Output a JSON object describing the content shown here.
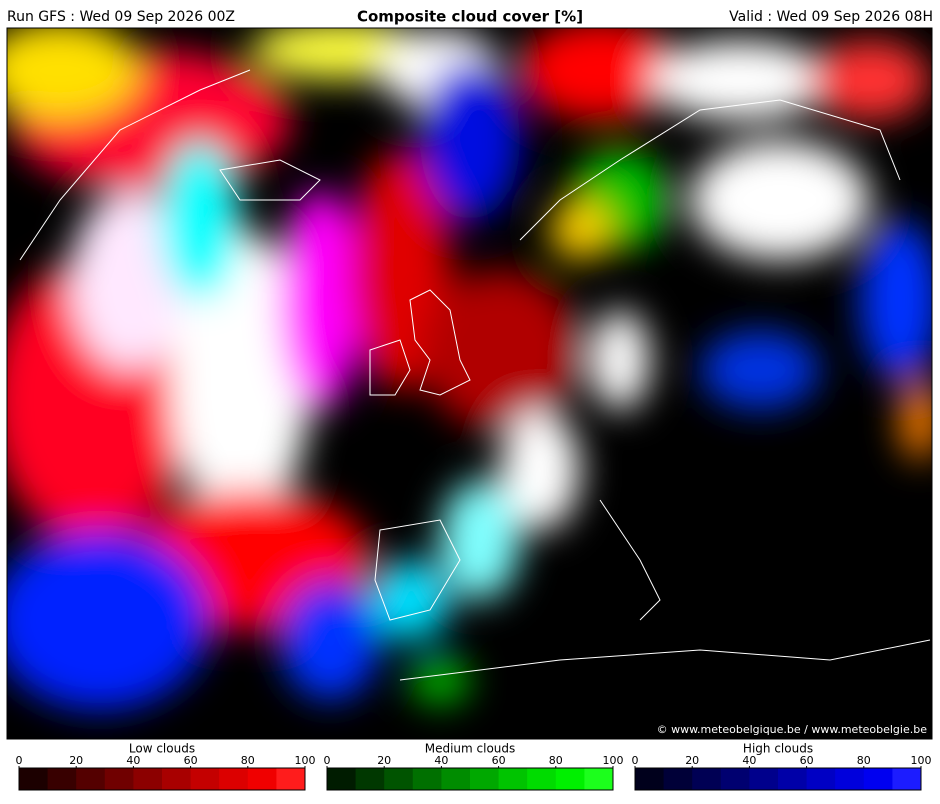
{
  "header": {
    "run": "Run GFS : Wed 09 Sep 2026 00Z",
    "title": "Composite cloud cover [%]",
    "valid": "Valid : Wed 09 Sep 2026 08H"
  },
  "credit": "© www.meteobelgique.be / www.meteobelgie.be",
  "colorbars": [
    {
      "title": "Low clouds",
      "ticks": [
        0,
        20,
        40,
        60,
        80,
        100
      ],
      "colors": [
        "#1c0000",
        "#380000",
        "#540000",
        "#700000",
        "#8c0000",
        "#a80000",
        "#c40000",
        "#dc0000",
        "#f00000",
        "#ff1c1c"
      ]
    },
    {
      "title": "Medium clouds",
      "ticks": [
        0,
        20,
        40,
        60,
        80,
        100
      ],
      "colors": [
        "#001c00",
        "#003800",
        "#005400",
        "#007000",
        "#008c00",
        "#00a800",
        "#00c400",
        "#00dc00",
        "#00f000",
        "#1cff1c"
      ]
    },
    {
      "title": "High clouds",
      "ticks": [
        0,
        20,
        40,
        60,
        80,
        100
      ],
      "colors": [
        "#00001c",
        "#000038",
        "#000054",
        "#000070",
        "#00008c",
        "#0000a8",
        "#0000c4",
        "#0000dc",
        "#0000f0",
        "#1c1cff"
      ]
    }
  ]
}
